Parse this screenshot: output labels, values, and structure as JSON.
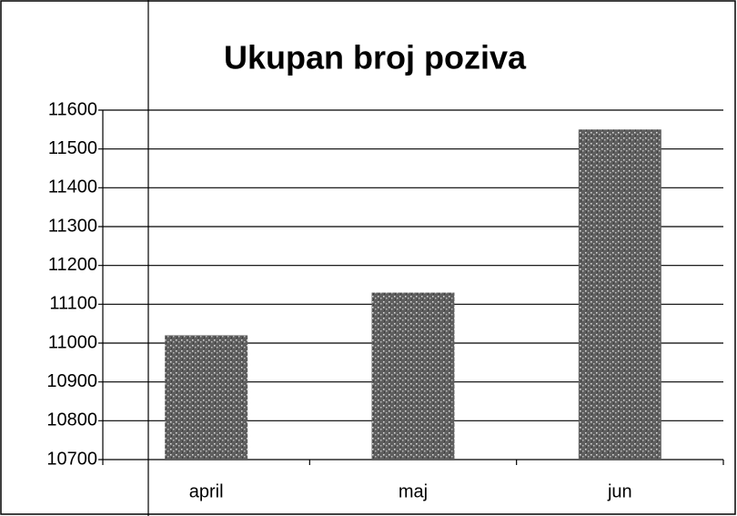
{
  "chart_data": {
    "type": "bar",
    "title": "Ukupan broj poziva",
    "categories": [
      "april",
      "maj",
      "jun"
    ],
    "values": [
      11020,
      11130,
      11550
    ],
    "color": "#5e5e5e",
    "ylim": [
      10700,
      11600
    ],
    "yticks": [
      10700,
      10800,
      10900,
      11000,
      11100,
      11200,
      11300,
      11400,
      11500,
      11600
    ],
    "grid": true
  }
}
